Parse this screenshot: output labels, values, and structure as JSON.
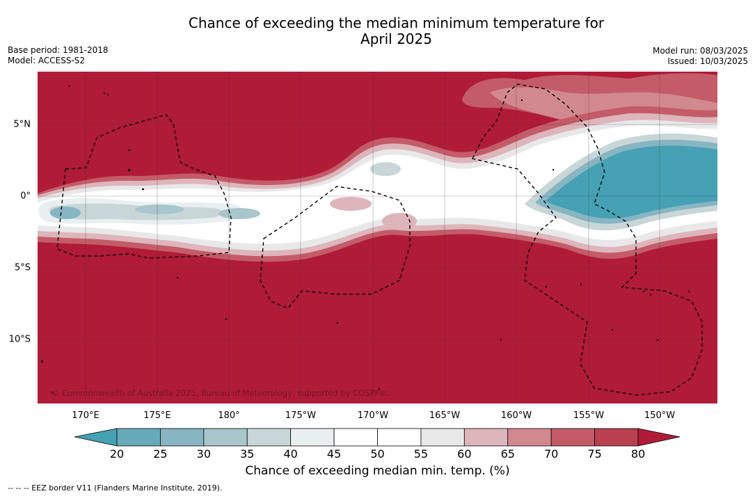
{
  "header": {
    "title_line1": "Chance of exceeding the median minimum temperature for",
    "title_line2": "April 2025",
    "base_period": "Base period: 1981-2018",
    "model": "Model: ACCESS-S2",
    "model_run": "Model run: 08/03/2025",
    "issued": "Issued: 10/03/2025"
  },
  "map": {
    "lon_labels": [
      "170°E",
      "175°E",
      "180°",
      "175°W",
      "170°W",
      "165°W",
      "160°W",
      "155°W",
      "150°W"
    ],
    "lat_labels": [
      "5°N",
      "0°",
      "5°S",
      "10°S"
    ],
    "copyright": "© Commonwealth of Australia 2025, Bureau of Meteorology, supported by COSPPac",
    "colors": {
      "above": "#b01b38",
      "below": "#45a1b3",
      "band_white": "#ffffff",
      "grid": "#333333"
    }
  },
  "colorbar": {
    "ticks": [
      "20",
      "25",
      "30",
      "35",
      "40",
      "45",
      "50",
      "55",
      "60",
      "65",
      "70",
      "75",
      "80"
    ],
    "colors": [
      "#67aab9",
      "#87b5c2",
      "#a8c6cb",
      "#c9d6d8",
      "#e9eff1",
      "#ffffff",
      "#ffffff",
      "#e8e8e9",
      "#ddb5bb",
      "#d2888f",
      "#c35c68",
      "#b8404f"
    ],
    "under_color": "#45a1b3",
    "over_color": "#b01b38",
    "label": "Chance of exceeding median min. temp. (%)"
  },
  "legend": {
    "eez_text": "--  --  -- EEZ border V11 (Flanders Marine Institute, 2019)."
  }
}
